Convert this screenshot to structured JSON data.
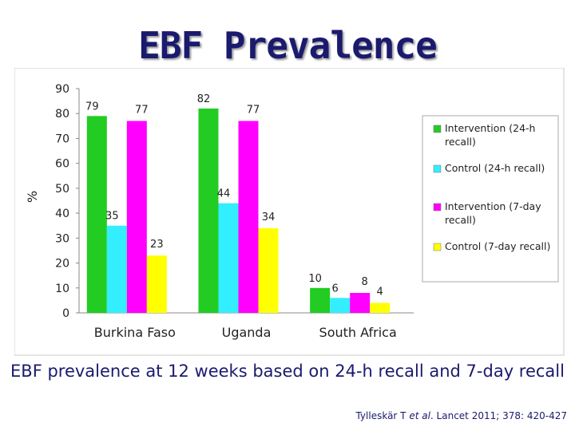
{
  "slide": {
    "title": "EBF Prevalence",
    "caption": "EBF prevalence at 12 weeks based on 24-h recall and 7-day recall",
    "citation": {
      "pre": "Tylleskär T ",
      "etal": "et al",
      "post": ".  Lancet 2011; 378: 420-427"
    }
  },
  "chart_data": {
    "type": "bar",
    "title": "",
    "xlabel": "",
    "ylabel": "%",
    "ylim": [
      0,
      90
    ],
    "yticks": [
      0,
      10,
      20,
      30,
      40,
      50,
      60,
      70,
      80,
      90
    ],
    "grid": false,
    "legend_position": "right",
    "categories": [
      "Burkina Faso",
      "Uganda",
      "South Africa"
    ],
    "series": [
      {
        "name": "Intervention (24-h recall)",
        "color": "#22cc22",
        "values": [
          79,
          82,
          10
        ]
      },
      {
        "name": "Control (24-h recall)",
        "color": "#33eeff",
        "values": [
          35,
          44,
          6
        ]
      },
      {
        "name": "Intervention (7-day recall)",
        "color": "#ff00ff",
        "values": [
          77,
          77,
          8
        ]
      },
      {
        "name": "Control (7-day recall)",
        "color": "#ffff00",
        "values": [
          23,
          34,
          4
        ]
      }
    ]
  }
}
